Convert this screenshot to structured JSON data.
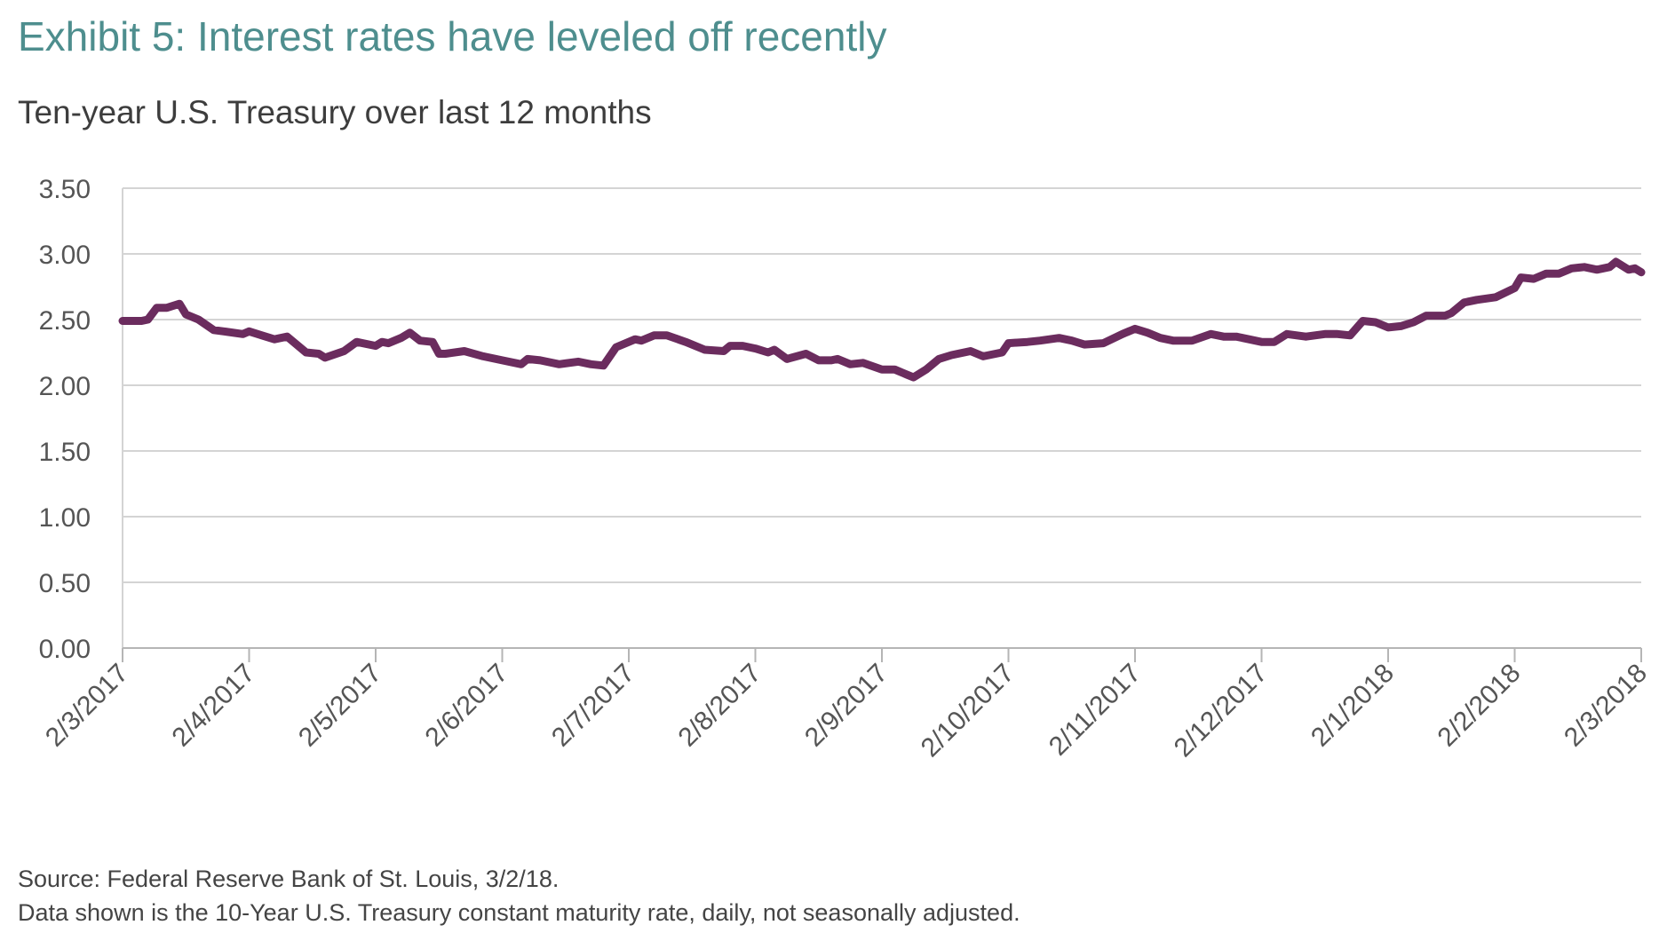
{
  "exhibit_title": "Exhibit 5: Interest rates have leveled off recently",
  "footer": {
    "source": "Source: Federal Reserve Bank of St. Louis, 3/2/18.",
    "note": "Data shown is the 10-Year U.S. Treasury constant maturity rate, daily, not seasonally adjusted."
  },
  "colors": {
    "title": "#4e8e8e",
    "line": "#6b2c5e",
    "grid": "#d4d4d4",
    "axis": "#b5b5b5",
    "tick_label": "#555555"
  },
  "chart_data": {
    "type": "line",
    "title": "Ten-year U.S. Treasury over last 12 months",
    "xlabel": "",
    "ylabel": "",
    "ylim": [
      0,
      3.5
    ],
    "y_ticks": [
      "0.00",
      "0.50",
      "1.00",
      "1.50",
      "2.00",
      "2.50",
      "3.00",
      "3.50"
    ],
    "x_tick_labels": [
      "2/3/2017",
      "2/4/2017",
      "2/5/2017",
      "2/6/2017",
      "2/7/2017",
      "2/8/2017",
      "2/9/2017",
      "2/10/2017",
      "2/11/2017",
      "2/12/2017",
      "2/1/2018",
      "2/2/2018",
      "2/3/2018"
    ],
    "x_unit": "months since 2/3/2017",
    "grid": true,
    "legend": "none",
    "series": [
      {
        "name": "10-Year U.S. Treasury constant maturity rate",
        "x": [
          0,
          0.15,
          0.2,
          0.27,
          0.35,
          0.45,
          0.5,
          0.6,
          0.72,
          0.8,
          0.95,
          1.0,
          1.1,
          1.2,
          1.3,
          1.45,
          1.55,
          1.6,
          1.75,
          1.85,
          2.0,
          2.05,
          2.1,
          2.2,
          2.27,
          2.35,
          2.45,
          2.5,
          2.55,
          2.7,
          2.85,
          2.95,
          3.0,
          3.15,
          3.2,
          3.3,
          3.45,
          3.6,
          3.7,
          3.8,
          3.9,
          4.05,
          4.1,
          4.2,
          4.3,
          4.45,
          4.6,
          4.75,
          4.8,
          4.9,
          5.0,
          5.1,
          5.15,
          5.25,
          5.4,
          5.5,
          5.6,
          5.65,
          5.75,
          5.85,
          6.0,
          6.1,
          6.2,
          6.25,
          6.35,
          6.45,
          6.55,
          6.7,
          6.8,
          6.95,
          7.0,
          7.15,
          7.25,
          7.4,
          7.5,
          7.6,
          7.75,
          7.9,
          8.0,
          8.1,
          8.2,
          8.3,
          8.45,
          8.6,
          8.7,
          8.8,
          8.9,
          9.0,
          9.1,
          9.2,
          9.35,
          9.5,
          9.6,
          9.7,
          9.8,
          9.9,
          10.0,
          10.1,
          10.2,
          10.3,
          10.45,
          10.5,
          10.6,
          10.7,
          10.85,
          11.0,
          11.05,
          11.15,
          11.25,
          11.35,
          11.45,
          11.55,
          11.65,
          11.75,
          11.8,
          11.9,
          11.95,
          12.0
        ],
        "values": [
          2.49,
          2.49,
          2.5,
          2.59,
          2.59,
          2.62,
          2.54,
          2.5,
          2.42,
          2.41,
          2.39,
          2.41,
          2.38,
          2.35,
          2.37,
          2.25,
          2.24,
          2.21,
          2.26,
          2.33,
          2.3,
          2.33,
          2.32,
          2.36,
          2.4,
          2.34,
          2.33,
          2.24,
          2.24,
          2.26,
          2.22,
          2.2,
          2.19,
          2.16,
          2.2,
          2.19,
          2.16,
          2.18,
          2.16,
          2.15,
          2.29,
          2.35,
          2.34,
          2.38,
          2.38,
          2.33,
          2.27,
          2.26,
          2.3,
          2.3,
          2.28,
          2.25,
          2.27,
          2.2,
          2.24,
          2.19,
          2.19,
          2.2,
          2.16,
          2.17,
          2.12,
          2.12,
          2.08,
          2.06,
          2.12,
          2.2,
          2.23,
          2.26,
          2.22,
          2.25,
          2.32,
          2.33,
          2.34,
          2.36,
          2.34,
          2.31,
          2.32,
          2.39,
          2.43,
          2.4,
          2.36,
          2.34,
          2.34,
          2.39,
          2.37,
          2.37,
          2.35,
          2.33,
          2.33,
          2.39,
          2.37,
          2.39,
          2.39,
          2.38,
          2.49,
          2.48,
          2.44,
          2.45,
          2.48,
          2.53,
          2.53,
          2.55,
          2.63,
          2.65,
          2.67,
          2.74,
          2.82,
          2.81,
          2.85,
          2.85,
          2.89,
          2.9,
          2.88,
          2.9,
          2.94,
          2.88,
          2.89,
          2.86
        ]
      }
    ]
  }
}
